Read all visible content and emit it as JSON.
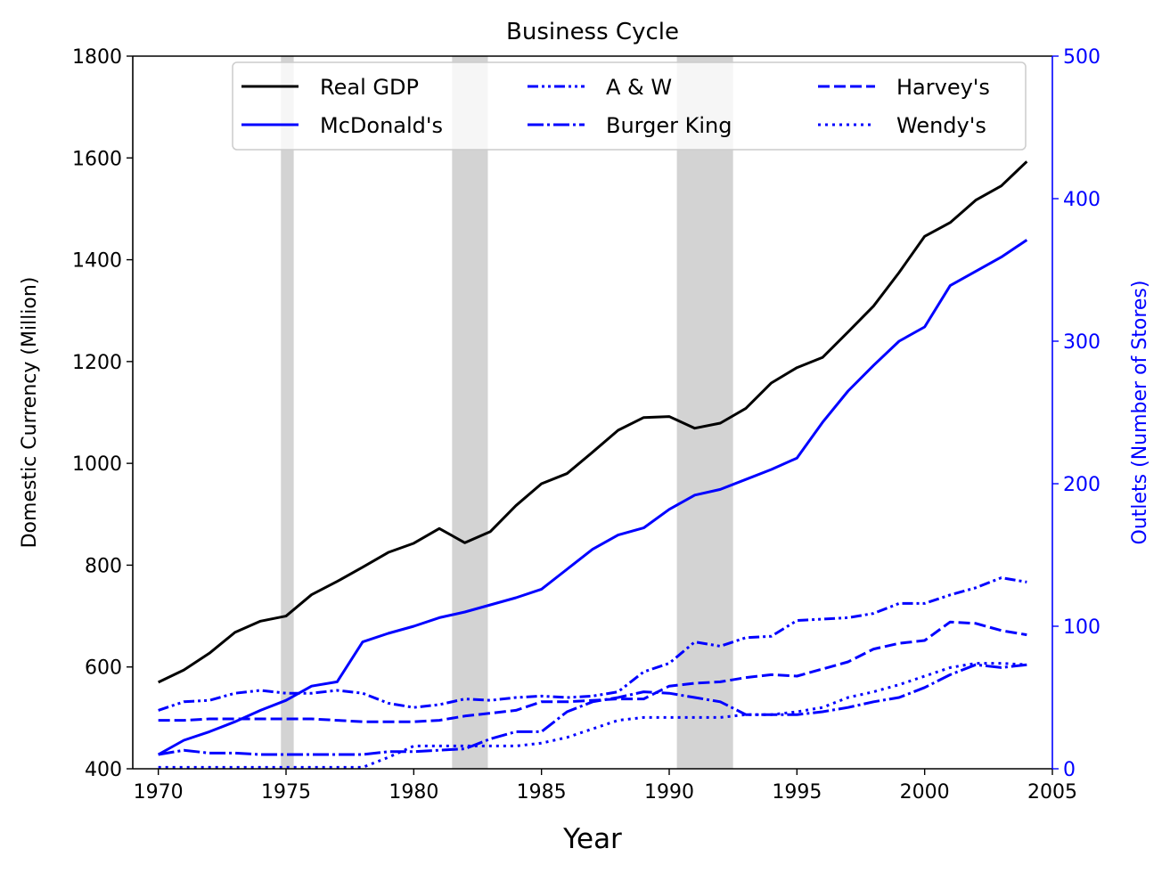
{
  "chart_data": {
    "type": "line",
    "title": "Business Cycle",
    "xlabel": "Year",
    "ylabel_left": "Domestic Currency (Million)",
    "ylabel_right": "Outlets (Number of Stores)",
    "xlim": [
      1969,
      2005
    ],
    "ylim_left": [
      400,
      1800
    ],
    "ylim_right": [
      0,
      500
    ],
    "x_ticks": [
      1970,
      1975,
      1980,
      1985,
      1990,
      1995,
      2000,
      2005
    ],
    "y_ticks_left": [
      400,
      600,
      800,
      1000,
      1200,
      1400,
      1600,
      1800
    ],
    "y_ticks_right": [
      0,
      100,
      200,
      300,
      400,
      500
    ],
    "right_axis_color": "#0000ff",
    "grid": false,
    "legend_position": "upper-center",
    "recessions": [
      [
        1974.8,
        1975.3
      ],
      [
        1981.5,
        1982.9
      ],
      [
        1990.3,
        1992.5
      ]
    ],
    "recession_color": "#d3d3d3",
    "x": [
      1970,
      1971,
      1972,
      1973,
      1974,
      1975,
      1976,
      1977,
      1978,
      1979,
      1980,
      1981,
      1982,
      1983,
      1984,
      1985,
      1986,
      1987,
      1988,
      1989,
      1990,
      1991,
      1992,
      1993,
      1994,
      1995,
      1996,
      1997,
      1998,
      1999,
      2000,
      2001,
      2002,
      2003,
      2004
    ],
    "series": [
      {
        "name": "Real GDP",
        "axis": "left",
        "color": "#000000",
        "dash": "solid",
        "values": [
          570,
          594,
          627,
          668,
          690,
          700,
          742,
          768,
          796,
          825,
          843,
          872,
          844,
          866,
          917,
          960,
          980,
          1022,
          1065,
          1090,
          1092,
          1069,
          1079,
          1108,
          1158,
          1188,
          1208,
          1258,
          1309,
          1375,
          1446,
          1473,
          1517,
          1545,
          1593
        ]
      },
      {
        "name": "McDonald's",
        "axis": "right",
        "color": "#0000ff",
        "dash": "solid",
        "values": [
          10,
          20,
          26,
          33,
          41,
          48,
          58,
          61,
          89,
          95,
          100,
          106,
          110,
          115,
          120,
          126,
          140,
          154,
          164,
          169,
          182,
          192,
          196,
          203,
          210,
          218,
          243,
          265,
          283,
          300,
          310,
          339,
          349,
          359,
          371
        ]
      },
      {
        "name": "A & W",
        "axis": "right",
        "color": "#0000ff",
        "dash": "dashdotdot",
        "values": [
          41,
          47,
          48,
          53,
          55,
          53,
          53,
          55,
          53,
          46,
          43,
          45,
          49,
          48,
          50,
          51,
          50,
          51,
          54,
          68,
          74,
          89,
          86,
          92,
          93,
          104,
          105,
          106,
          109,
          116,
          116,
          122,
          127,
          134,
          131
        ]
      },
      {
        "name": "Burger King",
        "axis": "right",
        "color": "#0000ff",
        "dash": "dashdot",
        "values": [
          10,
          13,
          11,
          11,
          10,
          10,
          10,
          10,
          10,
          12,
          12,
          13,
          14,
          21,
          26,
          26,
          40,
          47,
          50,
          54,
          53,
          50,
          47,
          38,
          38,
          38,
          40,
          43,
          47,
          50,
          57,
          66,
          73,
          71,
          73
        ]
      },
      {
        "name": "Harvey's",
        "axis": "right",
        "color": "#0000ff",
        "dash": "dashed",
        "values": [
          34,
          34,
          35,
          35,
          35,
          35,
          35,
          34,
          33,
          33,
          33,
          34,
          37,
          39,
          41,
          47,
          47,
          48,
          49,
          49,
          58,
          60,
          61,
          64,
          66,
          65,
          70,
          75,
          84,
          88,
          90,
          103,
          102,
          97,
          94
        ]
      },
      {
        "name": "Wendy's",
        "axis": "right",
        "color": "#0000ff",
        "dash": "dotted",
        "values": [
          1,
          1,
          1,
          1,
          1,
          1,
          1,
          1,
          1,
          8,
          16,
          16,
          16,
          16,
          16,
          18,
          22,
          28,
          34,
          36,
          36,
          36,
          36,
          38,
          38,
          40,
          43,
          50,
          54,
          59,
          65,
          71,
          74,
          74,
          73
        ]
      }
    ]
  }
}
